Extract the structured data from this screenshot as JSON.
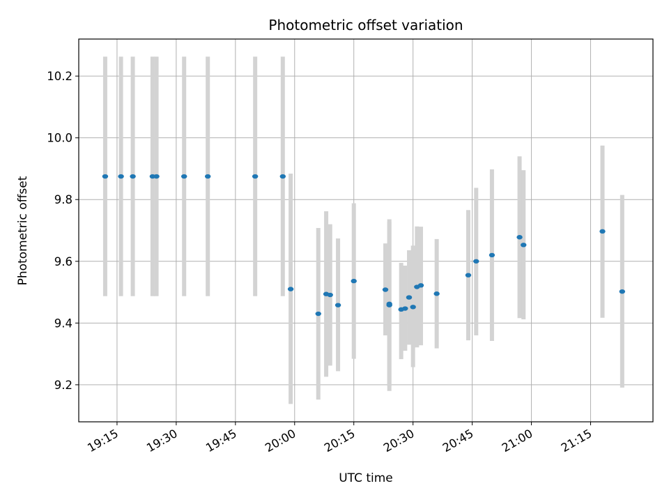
{
  "chart_data": {
    "type": "scatter",
    "title": "Photometric offset variation",
    "xlabel": "UTC time",
    "ylabel": "Photometric offset",
    "x_tick_labels": [
      "19:15",
      "19:30",
      "19:45",
      "20:00",
      "20:15",
      "20:30",
      "20:45",
      "21:00",
      "21:15"
    ],
    "x_tick_minutes": [
      1155,
      1170,
      1185,
      1200,
      1215,
      1230,
      1245,
      1260,
      1275
    ],
    "xlim_minutes": [
      1145.3,
      1290.8
    ],
    "y_ticks": [
      9.2,
      9.4,
      9.6,
      9.8,
      10.0,
      10.2
    ],
    "y_tick_labels": [
      "9.2",
      "9.4",
      "9.6",
      "9.8",
      "10.0",
      "10.2"
    ],
    "ylim": [
      9.08,
      10.32
    ],
    "grid": true,
    "point_color": "#1f77b4",
    "errorbar_color": "#d3d3d3",
    "series": [
      {
        "points": [
          {
            "t": "19:12",
            "y": 9.875,
            "lo": 9.487,
            "hi": 10.263
          },
          {
            "t": "19:16",
            "y": 9.875,
            "lo": 9.487,
            "hi": 10.263
          },
          {
            "t": "19:19",
            "y": 9.875,
            "lo": 9.487,
            "hi": 10.263
          },
          {
            "t": "19:24",
            "y": 9.875,
            "lo": 9.487,
            "hi": 10.263
          },
          {
            "t": "19:25",
            "y": 9.875,
            "lo": 9.487,
            "hi": 10.263
          },
          {
            "t": "19:32",
            "y": 9.875,
            "lo": 9.487,
            "hi": 10.263
          },
          {
            "t": "19:38",
            "y": 9.875,
            "lo": 9.487,
            "hi": 10.263
          },
          {
            "t": "19:50",
            "y": 9.875,
            "lo": 9.487,
            "hi": 10.263
          },
          {
            "t": "19:57",
            "y": 9.875,
            "lo": 9.487,
            "hi": 10.263
          },
          {
            "t": "19:59",
            "y": 9.51,
            "lo": 9.138,
            "hi": 9.884
          },
          {
            "t": "20:06",
            "y": 9.43,
            "lo": 9.152,
            "hi": 9.708
          },
          {
            "t": "20:08",
            "y": 9.494,
            "lo": 9.226,
            "hi": 9.762
          },
          {
            "t": "20:09",
            "y": 9.491,
            "lo": 9.262,
            "hi": 9.72
          },
          {
            "t": "20:11",
            "y": 9.458,
            "lo": 9.244,
            "hi": 9.674
          },
          {
            "t": "20:15",
            "y": 9.536,
            "lo": 9.284,
            "hi": 9.788
          },
          {
            "t": "20:23",
            "y": 9.508,
            "lo": 9.36,
            "hi": 9.658
          },
          {
            "t": "20:24",
            "y": 9.462,
            "lo": 9.196,
            "hi": 9.728
          },
          {
            "t": "20:24",
            "y": 9.458,
            "lo": 9.18,
            "hi": 9.736
          },
          {
            "t": "20:27",
            "y": 9.444,
            "lo": 9.283,
            "hi": 9.595
          },
          {
            "t": "20:28",
            "y": 9.447,
            "lo": 9.31,
            "hi": 9.586
          },
          {
            "t": "20:29",
            "y": 9.483,
            "lo": 9.33,
            "hi": 9.636
          },
          {
            "t": "20:30",
            "y": 9.452,
            "lo": 9.257,
            "hi": 9.651
          },
          {
            "t": "20:31",
            "y": 9.517,
            "lo": 9.321,
            "hi": 9.713
          },
          {
            "t": "20:32",
            "y": 9.522,
            "lo": 9.328,
            "hi": 9.712
          },
          {
            "t": "20:36",
            "y": 9.495,
            "lo": 9.318,
            "hi": 9.672
          },
          {
            "t": "20:44",
            "y": 9.555,
            "lo": 9.344,
            "hi": 9.766
          },
          {
            "t": "20:46",
            "y": 9.6,
            "lo": 9.36,
            "hi": 9.838
          },
          {
            "t": "20:50",
            "y": 9.62,
            "lo": 9.342,
            "hi": 9.898
          },
          {
            "t": "20:57",
            "y": 9.678,
            "lo": 9.416,
            "hi": 9.94
          },
          {
            "t": "20:58",
            "y": 9.653,
            "lo": 9.412,
            "hi": 9.895
          },
          {
            "t": "21:18",
            "y": 9.697,
            "lo": 9.417,
            "hi": 9.975
          },
          {
            "t": "21:23",
            "y": 9.502,
            "lo": 9.191,
            "hi": 9.815
          }
        ]
      }
    ]
  }
}
